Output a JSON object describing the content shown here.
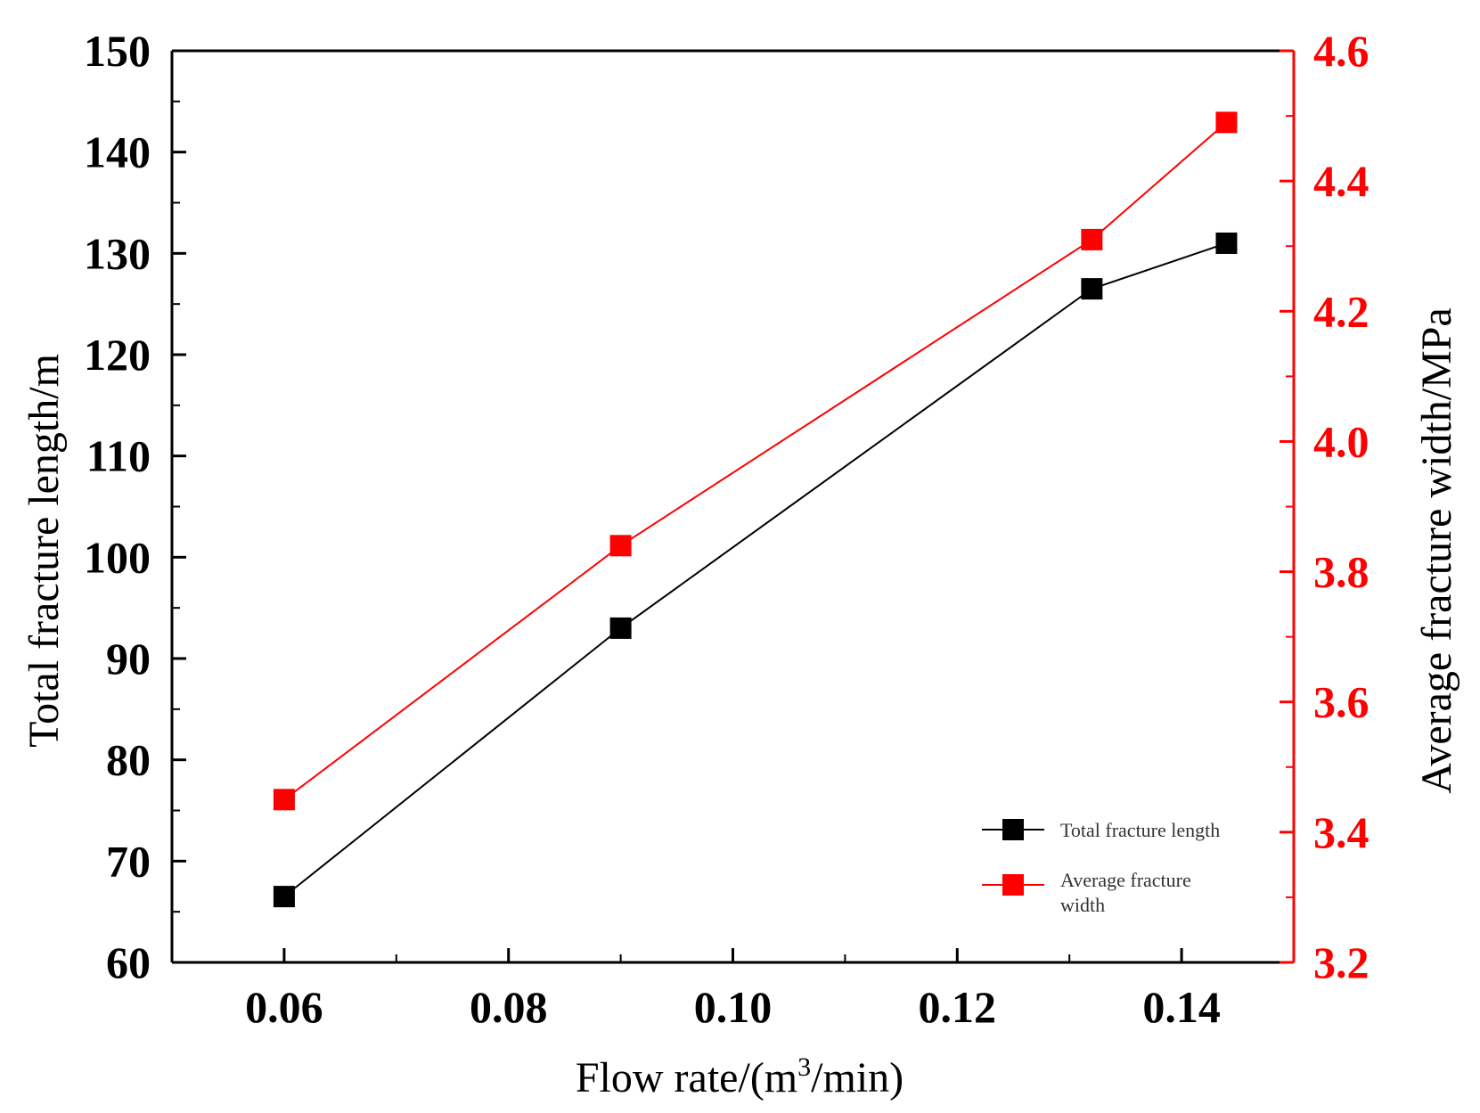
{
  "chart_data": {
    "type": "line",
    "x": [
      0.06,
      0.09,
      0.132,
      0.144
    ],
    "x_ticks": [
      "0.06",
      "0.08",
      "0.10",
      "0.12",
      "0.14"
    ],
    "x_tick_values": [
      0.06,
      0.08,
      0.1,
      0.12,
      0.14
    ],
    "xlim": [
      0.05,
      0.15
    ],
    "xlabel_prefix": "Flow rate/(m",
    "xlabel_sup": "3",
    "xlabel_suffix": "/min)",
    "ylabel_left": "Total fracture length/m",
    "ylabel_right": "Average fracture width/MPa",
    "ylim_left": [
      60,
      150
    ],
    "ylim_right": [
      3.2,
      4.6
    ],
    "y_ticks_left": [
      "60",
      "70",
      "80",
      "90",
      "100",
      "110",
      "120",
      "130",
      "140",
      "150"
    ],
    "y_tick_values_left": [
      60,
      70,
      80,
      90,
      100,
      110,
      120,
      130,
      140,
      150
    ],
    "y_ticks_right": [
      "3.2",
      "3.4",
      "3.6",
      "3.8",
      "4.0",
      "4.2",
      "4.4",
      "4.6"
    ],
    "y_tick_values_right": [
      3.2,
      3.4,
      3.6,
      3.8,
      4.0,
      4.2,
      4.4,
      4.6
    ],
    "series": [
      {
        "name": "Total fracture length",
        "axis": "left",
        "color": "#000000",
        "values": [
          66.5,
          93,
          126.5,
          131
        ],
        "legend_lines": [
          "Total fracture length"
        ]
      },
      {
        "name": "Average fracture width",
        "axis": "right",
        "color": "#ff0000",
        "values": [
          3.45,
          3.84,
          4.31,
          4.49
        ],
        "legend_lines": [
          "Average fracture",
          "width"
        ]
      }
    ],
    "legend_position": "lower-right"
  }
}
